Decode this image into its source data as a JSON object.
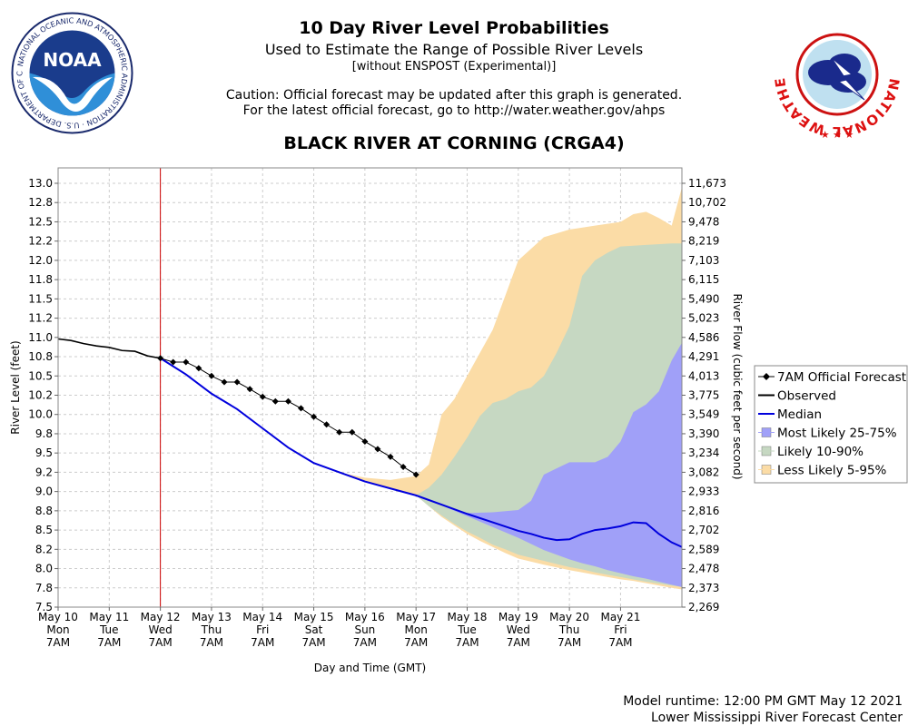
{
  "header": {
    "title": "10 Day River Level Probabilities",
    "subtitle": "Used to Estimate the Range of Possible River Levels",
    "note": "[without ENSPOST (Experimental)]",
    "caution1": "Caution: Official forecast may be updated after this graph is generated.",
    "caution2": "For the latest official forecast, go to http://water.weather.gov/ahps",
    "station": "BLACK RIVER AT CORNING (CRGA4)"
  },
  "logos": {
    "noaa": {
      "center_text": "NOAA",
      "ring_text": "NATIONAL OCEANIC AND ATMOSPHERIC ADMINISTRATION · U.S. DEPARTMENT OF COMMERCE"
    },
    "nws": {
      "ring_text": "NATIONAL WEATHER SERVICE"
    }
  },
  "footer": {
    "line1": "Model runtime: 12:00 PM GMT May 12 2021",
    "line2": "Lower Mississippi River Forecast Center"
  },
  "colors": {
    "observed": "#000000",
    "median": "#0000dd",
    "band_25_75": "#a0a0f8",
    "band_10_90": "#c6d8c2",
    "band_5_95": "#fbdca6",
    "forecast": "#000000",
    "current_time_line": "#cc0000",
    "grid": "#cccccc"
  },
  "chart_data": {
    "type": "line",
    "xlabel": "Day and Time (GMT)",
    "ylabel": "River Level (feet)",
    "y2label": "River Flow (cubic feet per second)",
    "ylim": [
      7.5,
      13.2
    ],
    "xlim": [
      0,
      12.2
    ],
    "x_unit": "days since May 10 7AM",
    "current_time_x": 2,
    "grid": true,
    "legend_position": "right",
    "x_ticks": [
      {
        "x": 0,
        "lines": [
          "May 10",
          "Mon",
          "7AM"
        ]
      },
      {
        "x": 1,
        "lines": [
          "May 11",
          "Tue",
          "7AM"
        ]
      },
      {
        "x": 2,
        "lines": [
          "May 12",
          "Wed",
          "7AM"
        ]
      },
      {
        "x": 3,
        "lines": [
          "May 13",
          "Thu",
          "7AM"
        ]
      },
      {
        "x": 4,
        "lines": [
          "May 14",
          "Fri",
          "7AM"
        ]
      },
      {
        "x": 5,
        "lines": [
          "May 15",
          "Sat",
          "7AM"
        ]
      },
      {
        "x": 6,
        "lines": [
          "May 16",
          "Sun",
          "7AM"
        ]
      },
      {
        "x": 7,
        "lines": [
          "May 17",
          "Mon",
          "7AM"
        ]
      },
      {
        "x": 8,
        "lines": [
          "May 18",
          "Tue",
          "7AM"
        ]
      },
      {
        "x": 9,
        "lines": [
          "May 19",
          "Wed",
          "7AM"
        ]
      },
      {
        "x": 10,
        "lines": [
          "May 20",
          "Thu",
          "7AM"
        ]
      },
      {
        "x": 11,
        "lines": [
          "May 21",
          "Fri",
          "7AM"
        ]
      }
    ],
    "y_ticks": [
      {
        "v": 7.5,
        "label": "7.5",
        "flow": "2,269"
      },
      {
        "v": 7.75,
        "label": "7.8",
        "flow": "2,373"
      },
      {
        "v": 8.0,
        "label": "8.0",
        "flow": "2,478"
      },
      {
        "v": 8.25,
        "label": "8.2",
        "flow": "2,589"
      },
      {
        "v": 8.5,
        "label": "8.5",
        "flow": "2,702"
      },
      {
        "v": 8.75,
        "label": "8.8",
        "flow": "2,816"
      },
      {
        "v": 9.0,
        "label": "9.0",
        "flow": "2,933"
      },
      {
        "v": 9.25,
        "label": "9.2",
        "flow": "3,082"
      },
      {
        "v": 9.5,
        "label": "9.5",
        "flow": "3,234"
      },
      {
        "v": 9.75,
        "label": "9.8",
        "flow": "3,390"
      },
      {
        "v": 10.0,
        "label": "10.0",
        "flow": "3,549"
      },
      {
        "v": 10.25,
        "label": "10.2",
        "flow": "3,775"
      },
      {
        "v": 10.5,
        "label": "10.5",
        "flow": "4,013"
      },
      {
        "v": 10.75,
        "label": "10.8",
        "flow": "4,291"
      },
      {
        "v": 11.0,
        "label": "11.0",
        "flow": "4,586"
      },
      {
        "v": 11.25,
        "label": "11.2",
        "flow": "5,023"
      },
      {
        "v": 11.5,
        "label": "11.5",
        "flow": "5,490"
      },
      {
        "v": 11.75,
        "label": "11.8",
        "flow": "6,115"
      },
      {
        "v": 12.0,
        "label": "12.0",
        "flow": "7,103"
      },
      {
        "v": 12.25,
        "label": "12.2",
        "flow": "8,219"
      },
      {
        "v": 12.5,
        "label": "12.5",
        "flow": "9,478"
      },
      {
        "v": 12.75,
        "label": "12.8",
        "flow": "10,702"
      },
      {
        "v": 13.0,
        "label": "13.0",
        "flow": "11,673"
      }
    ],
    "legend": [
      {
        "key": "forecast",
        "label": "7AM Official Forecast"
      },
      {
        "key": "observed",
        "label": "Observed"
      },
      {
        "key": "median",
        "label": "Median"
      },
      {
        "key": "band_25_75",
        "label": "Most Likely 25-75%"
      },
      {
        "key": "band_10_90",
        "label": "Likely 10-90%"
      },
      {
        "key": "band_5_95",
        "label": "Less Likely 5-95%"
      }
    ],
    "observed": {
      "x": [
        0,
        0.25,
        0.5,
        0.75,
        1,
        1.25,
        1.5,
        1.75,
        2
      ],
      "y": [
        10.98,
        10.96,
        10.92,
        10.89,
        10.87,
        10.83,
        10.82,
        10.76,
        10.73
      ]
    },
    "forecast": {
      "x": [
        2,
        2.25,
        2.5,
        2.75,
        3,
        3.25,
        3.5,
        3.75,
        4,
        4.25,
        4.5,
        4.75,
        5,
        5.25,
        5.5,
        5.75,
        6,
        6.25,
        6.5,
        6.75,
        7
      ],
      "y": [
        10.73,
        10.68,
        10.68,
        10.6,
        10.5,
        10.42,
        10.42,
        10.33,
        10.23,
        10.17,
        10.17,
        10.08,
        9.97,
        9.87,
        9.77,
        9.77,
        9.65,
        9.55,
        9.45,
        9.32,
        9.22
      ]
    },
    "median": {
      "x": [
        2,
        2.5,
        3,
        3.5,
        4,
        4.5,
        5,
        5.5,
        6,
        6.5,
        7,
        7.5,
        8,
        8.5,
        9,
        9.25,
        9.5,
        9.75,
        10,
        10.25,
        10.5,
        10.75,
        11,
        11.25,
        11.5,
        11.75,
        12,
        12.2
      ],
      "y": [
        10.73,
        10.52,
        10.27,
        10.07,
        9.82,
        9.57,
        9.37,
        9.25,
        9.13,
        9.04,
        8.95,
        8.83,
        8.71,
        8.6,
        8.49,
        8.45,
        8.4,
        8.37,
        8.38,
        8.45,
        8.5,
        8.52,
        8.55,
        8.6,
        8.59,
        8.45,
        8.34,
        8.28
      ]
    },
    "band_25_75": {
      "x": [
        7,
        7.5,
        8,
        8.5,
        9,
        9.25,
        9.5,
        9.75,
        10,
        10.25,
        10.5,
        10.75,
        11,
        11.25,
        11.5,
        11.75,
        12,
        12.2
      ],
      "upper": [
        8.95,
        8.83,
        8.72,
        8.73,
        8.76,
        8.88,
        9.22,
        9.3,
        9.38,
        9.38,
        9.38,
        9.45,
        9.65,
        10.03,
        10.13,
        10.3,
        10.7,
        10.93
      ],
      "lower": [
        8.95,
        8.82,
        8.68,
        8.54,
        8.4,
        8.32,
        8.24,
        8.18,
        8.12,
        8.07,
        8.03,
        7.98,
        7.94,
        7.9,
        7.87,
        7.83,
        7.79,
        7.76
      ]
    },
    "band_10_90": {
      "x": [
        7,
        7.25,
        7.5,
        7.75,
        8,
        8.25,
        8.5,
        8.75,
        9,
        9.25,
        9.5,
        9.75,
        10,
        10.25,
        10.5,
        10.75,
        11,
        11.5,
        12,
        12.2
      ],
      "upper": [
        8.95,
        9.05,
        9.22,
        9.45,
        9.7,
        9.98,
        10.15,
        10.2,
        10.3,
        10.35,
        10.5,
        10.8,
        11.15,
        11.8,
        12.0,
        12.1,
        12.18,
        12.2,
        12.22,
        12.22
      ],
      "lower": [
        8.95,
        8.81,
        8.69,
        8.58,
        8.48,
        8.4,
        8.31,
        8.25,
        8.18,
        8.14,
        8.1,
        8.06,
        8.02,
        7.99,
        7.95,
        7.92,
        7.89,
        7.83,
        7.78,
        7.76
      ]
    },
    "band_5_95": {
      "x": [
        5,
        5.5,
        6,
        6.5,
        7,
        7.25,
        7.5,
        7.75,
        8,
        8.25,
        8.5,
        8.75,
        9,
        9.5,
        10,
        10.5,
        11,
        11.25,
        11.5,
        11.75,
        12,
        12.2
      ],
      "upper": [
        9.37,
        9.25,
        9.18,
        9.15,
        9.2,
        9.35,
        10.0,
        10.2,
        10.5,
        10.8,
        11.1,
        11.55,
        12.0,
        12.3,
        12.4,
        12.45,
        12.5,
        12.6,
        12.63,
        12.55,
        12.45,
        12.95
      ],
      "lower": [
        9.37,
        9.25,
        9.13,
        9.03,
        8.95,
        8.81,
        8.67,
        8.56,
        8.45,
        8.36,
        8.28,
        8.2,
        8.13,
        8.05,
        7.98,
        7.92,
        7.86,
        7.84,
        7.81,
        7.78,
        7.75,
        7.73
      ]
    }
  }
}
